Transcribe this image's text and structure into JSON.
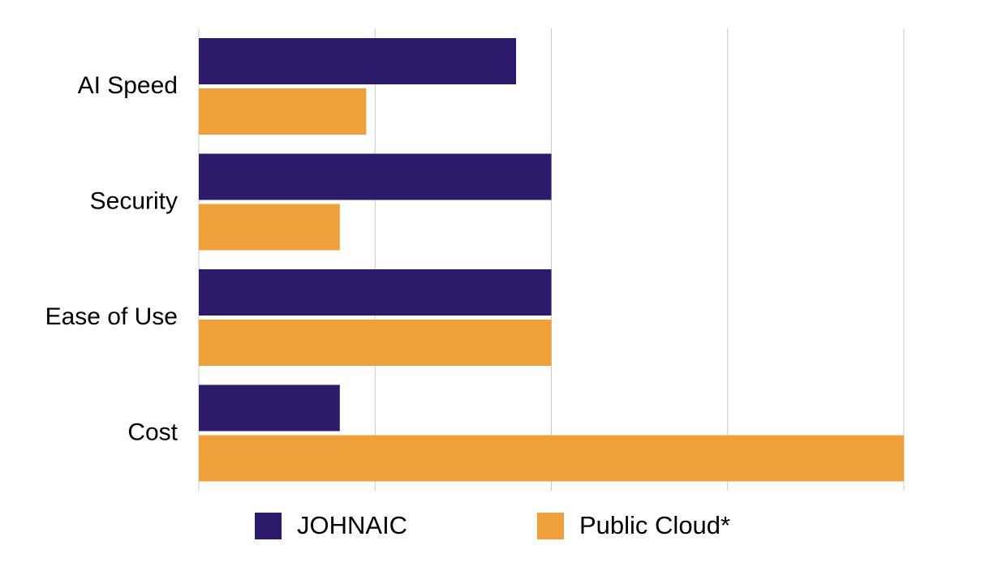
{
  "chart_data": {
    "type": "bar",
    "orientation": "horizontal",
    "categories": [
      "AI Speed",
      "Security",
      "Ease of Use",
      "Cost"
    ],
    "series": [
      {
        "name": "JOHNAIC",
        "color": "#2e1a6b",
        "values": [
          1.8,
          2.0,
          2.0,
          0.8
        ]
      },
      {
        "name": "Public Cloud*",
        "color": "#f0a03a",
        "values": [
          0.95,
          0.8,
          2.0,
          4.0
        ]
      }
    ],
    "xlim": [
      0,
      4
    ],
    "grid": true,
    "title": "",
    "xlabel": "",
    "ylabel": "",
    "legend_position": "bottom"
  }
}
